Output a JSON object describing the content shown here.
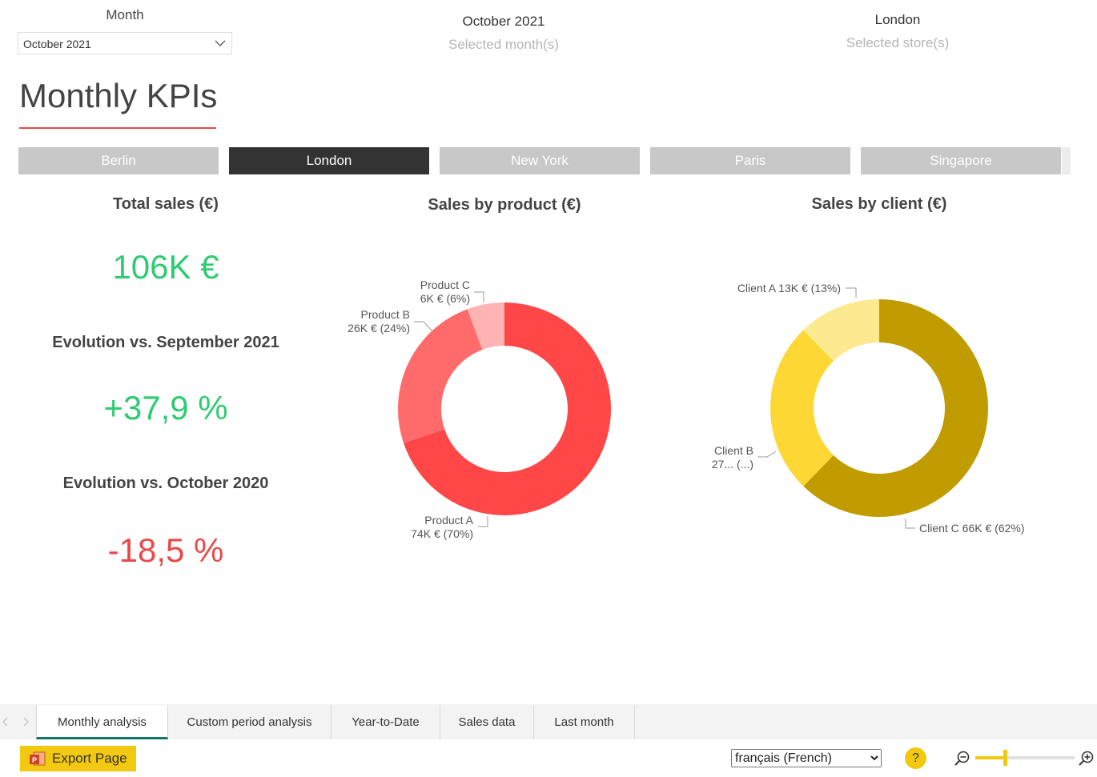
{
  "filters": {
    "month_label": "Month",
    "month_value": "October 2021",
    "selected_month_value": "October 2021",
    "selected_month_caption": "Selected month(s)",
    "selected_store_value": "London",
    "selected_store_caption": "Selected store(s)"
  },
  "page_title": "Monthly KPIs",
  "stores": [
    {
      "label": "Berlin",
      "active": false
    },
    {
      "label": "London",
      "active": true
    },
    {
      "label": "New York",
      "active": false
    },
    {
      "label": "Paris",
      "active": false
    },
    {
      "label": "Singapore",
      "active": false
    }
  ],
  "kpis": {
    "total_sales_title": "Total sales (€)",
    "total_sales_value": "106K €",
    "evolution_month_title": "Evolution vs. September 2021",
    "evolution_month_value": "+37,9 %",
    "evolution_year_title": "Evolution vs. October 2020",
    "evolution_year_value": "-18,5 %",
    "colors": {
      "positive": "#2ecc71",
      "negative": "#e84a4a"
    }
  },
  "chart_data": [
    {
      "type": "pie",
      "title": "Sales by product (€)",
      "categories": [
        "Product A",
        "Product B",
        "Product C"
      ],
      "values": [
        74,
        26,
        6
      ],
      "unit": "K €",
      "data_labels": [
        {
          "name": "Product A",
          "detail": "74K € (70%)"
        },
        {
          "name": "Product B",
          "detail": "26K € (24%)"
        },
        {
          "name": "Product C",
          "detail": "6K € (6%)"
        }
      ],
      "colors": [
        "#ff4747",
        "#ff6b6b",
        "#ffb3b3"
      ],
      "donut": true
    },
    {
      "type": "pie",
      "title": "Sales by client (€)",
      "categories": [
        "Client C",
        "Client B",
        "Client A"
      ],
      "values": [
        66,
        27,
        13
      ],
      "unit": "K €",
      "data_labels": [
        {
          "name": "Client C",
          "detail": "Client C 66K € (62%)"
        },
        {
          "name": "Client B",
          "detail": "27... (...)"
        },
        {
          "name": "Client A",
          "detail": "Client A 13K € (13%)"
        }
      ],
      "colors": [
        "#c19c00",
        "#fdd835",
        "#fde98f"
      ],
      "donut": true
    }
  ],
  "page_tabs": [
    {
      "label": "Monthly analysis",
      "active": true
    },
    {
      "label": "Custom period analysis",
      "active": false
    },
    {
      "label": "Year-to-Date",
      "active": false
    },
    {
      "label": "Sales data",
      "active": false
    },
    {
      "label": "Last month",
      "active": false
    }
  ],
  "footer": {
    "export_label": "Export Page",
    "language_selected": "français (French)",
    "help_label": "?",
    "zoom_level": 0.3,
    "icons": [
      "powerpoint-icon",
      "help-icon",
      "zoom-out-icon",
      "zoom-in-icon"
    ]
  }
}
